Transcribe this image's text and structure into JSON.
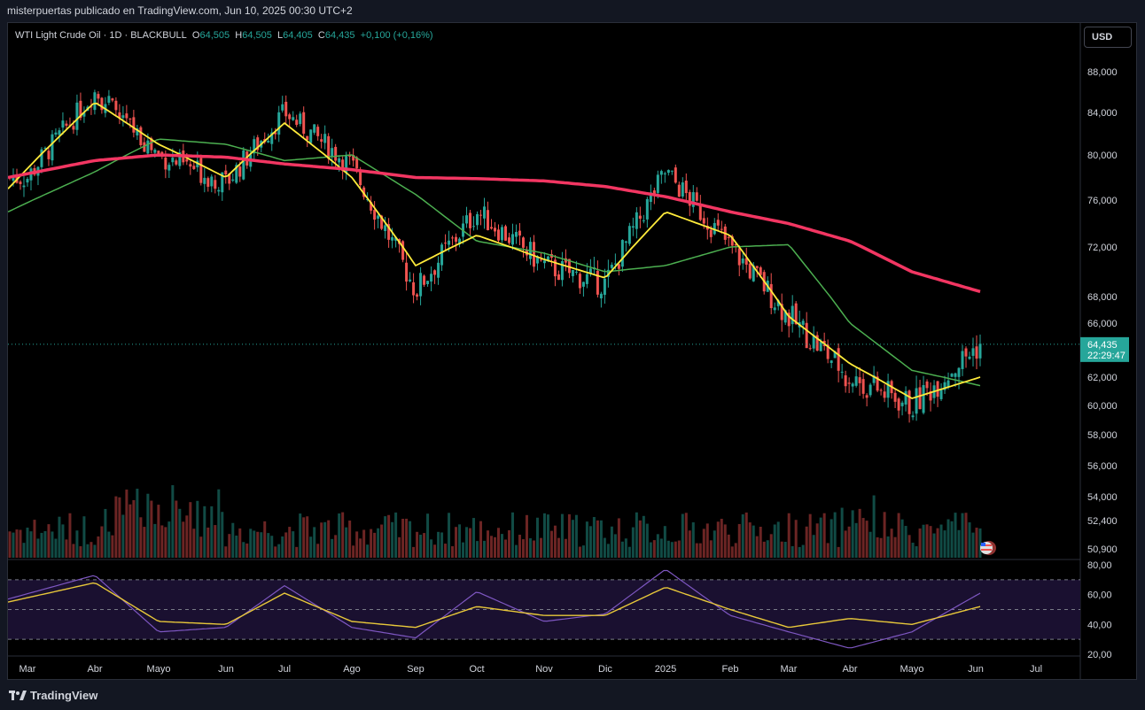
{
  "header": {
    "attribution": "misterpuertas publicado en TradingView.com, Jun 10, 2025 00:30 UTC+2"
  },
  "symbol": {
    "name": "WTI Light Crude Oil · 1D · BLACKBULL",
    "o_label": "O",
    "o_value": "64,505",
    "h_label": "H",
    "h_value": "64,505",
    "l_label": "L",
    "l_value": "64,405",
    "c_label": "C",
    "c_value": "64,435",
    "change": "+0,100 (+0,16%)"
  },
  "currency_button": "USD",
  "last_price": {
    "value": "64,435",
    "countdown": "22:29:47"
  },
  "footer": {
    "brand": "TradingView",
    "logo_icon": "tradingview-logo-icon"
  },
  "colors": {
    "up": "#26a69a",
    "down": "#ef5350",
    "ma_fast": "#2962ff",
    "ma_yellow": "#ffeb3b",
    "ma_green": "#4caf50",
    "ma_red": "#f23662",
    "rsi": "#7e57c2",
    "rsi_ma": "#e8c83a"
  },
  "chart_data": [
    {
      "type": "line",
      "subtype": "candlestick",
      "title": "WTI Light Crude Oil · 1D · BLACKBULL",
      "y_ticks": [
        "88,000",
        "84,000",
        "80,000",
        "76,000",
        "72,000",
        "68,000",
        "66,000",
        "62,000",
        "60,000",
        "58,000",
        "56,000",
        "54,000",
        "52,400",
        "50,900"
      ],
      "y_tick_values": [
        88000,
        84000,
        80000,
        76000,
        72000,
        68000,
        66000,
        62000,
        60000,
        58000,
        56000,
        54000,
        52400,
        50900
      ],
      "x_ticks": [
        "Mar",
        "Abr",
        "Mayo",
        "Jun",
        "Jul",
        "Ago",
        "Sep",
        "Oct",
        "Nov",
        "Dic",
        "2025",
        "Feb",
        "Mar",
        "Abr",
        "Mayo",
        "Jun",
        "Jul"
      ],
      "series": [
        {
          "kind": "close",
          "x": [
            "Mar",
            "Abr",
            "Mayo",
            "Jun",
            "Jul",
            "Ago",
            "Sep",
            "Oct",
            "Nov",
            "Dic",
            "2025",
            "Feb",
            "Mar",
            "Abr",
            "Mayo",
            "Jun"
          ],
          "values": [
            78000,
            86000,
            80000,
            77500,
            84000,
            79000,
            68500,
            75000,
            70500,
            69000,
            78500,
            72000,
            66500,
            62000,
            60000,
            64435
          ]
        },
        {
          "name": "",
          "kind": "ma_red",
          "x": [
            "Mar",
            "Abr",
            "Mayo",
            "Jun",
            "Jul",
            "Ago",
            "Sep",
            "Oct",
            "Nov",
            "Dic",
            "2025",
            "Feb",
            "Mar",
            "Abr",
            "Mayo",
            "Jun"
          ],
          "values": [
            78000,
            79500,
            80000,
            79800,
            79200,
            78700,
            78000,
            77900,
            77700,
            77200,
            76300,
            75000,
            74000,
            72500,
            70000,
            68400
          ]
        },
        {
          "name": "",
          "kind": "ma_green",
          "x": [
            "Mar",
            "Abr",
            "Mayo",
            "Jun",
            "Jul",
            "Ago",
            "Sep",
            "Oct",
            "Nov",
            "Dic",
            "2025",
            "Feb",
            "Mar",
            "Abr",
            "Mayo",
            "Jun"
          ],
          "values": [
            75000,
            78500,
            81500,
            81000,
            79500,
            80000,
            76500,
            72500,
            71500,
            70000,
            70500,
            72000,
            72200,
            66000,
            62500,
            61400
          ]
        },
        {
          "name": "",
          "kind": "ma_yellow",
          "x": [
            "Mar",
            "Abr",
            "Mayo",
            "Jun",
            "Jul",
            "Ago",
            "Sep",
            "Oct",
            "Nov",
            "Dic",
            "2025",
            "Feb",
            "Mar",
            "Abr",
            "Mayo",
            "Jun"
          ],
          "values": [
            77000,
            85000,
            81000,
            78000,
            83000,
            78000,
            70500,
            73000,
            71000,
            69500,
            75000,
            73000,
            66500,
            63000,
            60500,
            62000
          ]
        }
      ],
      "last_value": 64435
    },
    {
      "type": "line",
      "title": "RSI",
      "y_ticks": [
        "80,00",
        "60,00",
        "40,00",
        "20,00"
      ],
      "y_tick_values": [
        80,
        60,
        40,
        20
      ],
      "ylim": [
        20,
        80
      ],
      "bands": [
        70,
        50,
        30
      ],
      "series": [
        {
          "name": "",
          "kind": "rsi",
          "x": [
            "Mar",
            "Abr",
            "Mayo",
            "Jun",
            "Jul",
            "Ago",
            "Sep",
            "Oct",
            "Nov",
            "Dic",
            "2025",
            "Feb",
            "Mar",
            "Abr",
            "Mayo",
            "Jun"
          ],
          "values": [
            57,
            73,
            35,
            38,
            66,
            38,
            31,
            62,
            42,
            47,
            77,
            46,
            35,
            24,
            35,
            61
          ]
        },
        {
          "name": "",
          "kind": "rsi_ma",
          "x": [
            "Mar",
            "Abr",
            "Mayo",
            "Jun",
            "Jul",
            "Ago",
            "Sep",
            "Oct",
            "Nov",
            "Dic",
            "2025",
            "Feb",
            "Mar",
            "Abr",
            "Mayo",
            "Jun"
          ],
          "values": [
            55,
            68,
            42,
            40,
            61,
            42,
            38,
            52,
            46,
            46,
            65,
            50,
            38,
            44,
            40,
            52
          ]
        }
      ]
    }
  ]
}
